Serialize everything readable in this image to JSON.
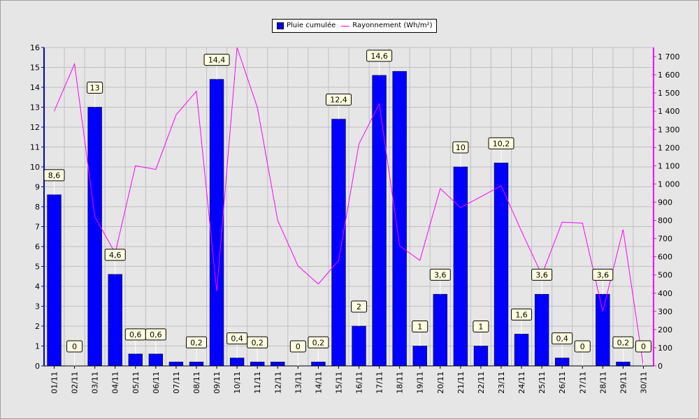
{
  "legend": {
    "bar_label": "Pluie cumulée",
    "line_label": "Rayonnement (Wh/m²)"
  },
  "chart_data": {
    "type": "bar",
    "categories": [
      "01/11",
      "02/11",
      "03/11",
      "04/11",
      "05/11",
      "06/11",
      "07/11",
      "08/11",
      "09/11",
      "10/11",
      "11/11",
      "12/11",
      "13/11",
      "14/11",
      "15/11",
      "16/11",
      "17/11",
      "18/11",
      "19/11",
      "20/11",
      "21/11",
      "22/11",
      "23/11",
      "24/11",
      "25/11",
      "26/11",
      "27/11",
      "28/11",
      "29/11",
      "30/11"
    ],
    "series": [
      {
        "name": "Pluie cumulée",
        "type": "bar",
        "axis": "left",
        "color": "#0000ff",
        "values": [
          8.6,
          0,
          13,
          4.6,
          0.6,
          0.6,
          0.2,
          0.2,
          14.4,
          0.4,
          0.2,
          0.2,
          0,
          0.2,
          12.4,
          2,
          14.6,
          14.8,
          1,
          3.6,
          10,
          1,
          10.2,
          1.6,
          3.6,
          0.4,
          0,
          3.6,
          0.2,
          0
        ],
        "data_labels": [
          "8,6",
          "0",
          "13",
          "4,6",
          "0,6",
          "0,6",
          null,
          "0,2",
          "14,4",
          "0,4",
          "0,2",
          null,
          "0",
          "0,2",
          "12,4",
          "2",
          "14,6",
          null,
          "1",
          "3,6",
          "10",
          "1",
          "10,2",
          "1,6",
          "3,6",
          "0,4",
          "0",
          "3,6",
          "0,2",
          "0"
        ]
      },
      {
        "name": "Rayonnement (Wh/m²)",
        "type": "line",
        "axis": "right",
        "color": "#ff00ff",
        "values": [
          1400,
          1660,
          820,
          620,
          1100,
          1080,
          1380,
          1510,
          410,
          1750,
          1420,
          800,
          550,
          450,
          580,
          1220,
          1440,
          660,
          580,
          975,
          870,
          930,
          990,
          740,
          500,
          790,
          785,
          300,
          750,
          0
        ]
      }
    ],
    "y_left": {
      "min": 0,
      "max": 16,
      "ticks": [
        "0",
        "1",
        "2",
        "3",
        "4",
        "5",
        "6",
        "7",
        "8",
        "9",
        "10",
        "11",
        "12",
        "13",
        "14",
        "15",
        "16"
      ]
    },
    "y_right": {
      "min": 0,
      "max": 1750,
      "ticks": [
        "0",
        "100",
        "200",
        "300",
        "400",
        "500",
        "600",
        "700",
        "800",
        "900",
        "1 000",
        "1 100",
        "1 200",
        "1 300",
        "1 400",
        "1 500",
        "1 600",
        "1 700"
      ]
    },
    "grid": true,
    "legend_position": "top-center",
    "colors": {
      "background": "#e6e6e6",
      "grid": "#c0c0c0",
      "left_axis": "#0000cc",
      "right_axis": "#ff00ff",
      "label_box": "#ffffe0"
    }
  }
}
